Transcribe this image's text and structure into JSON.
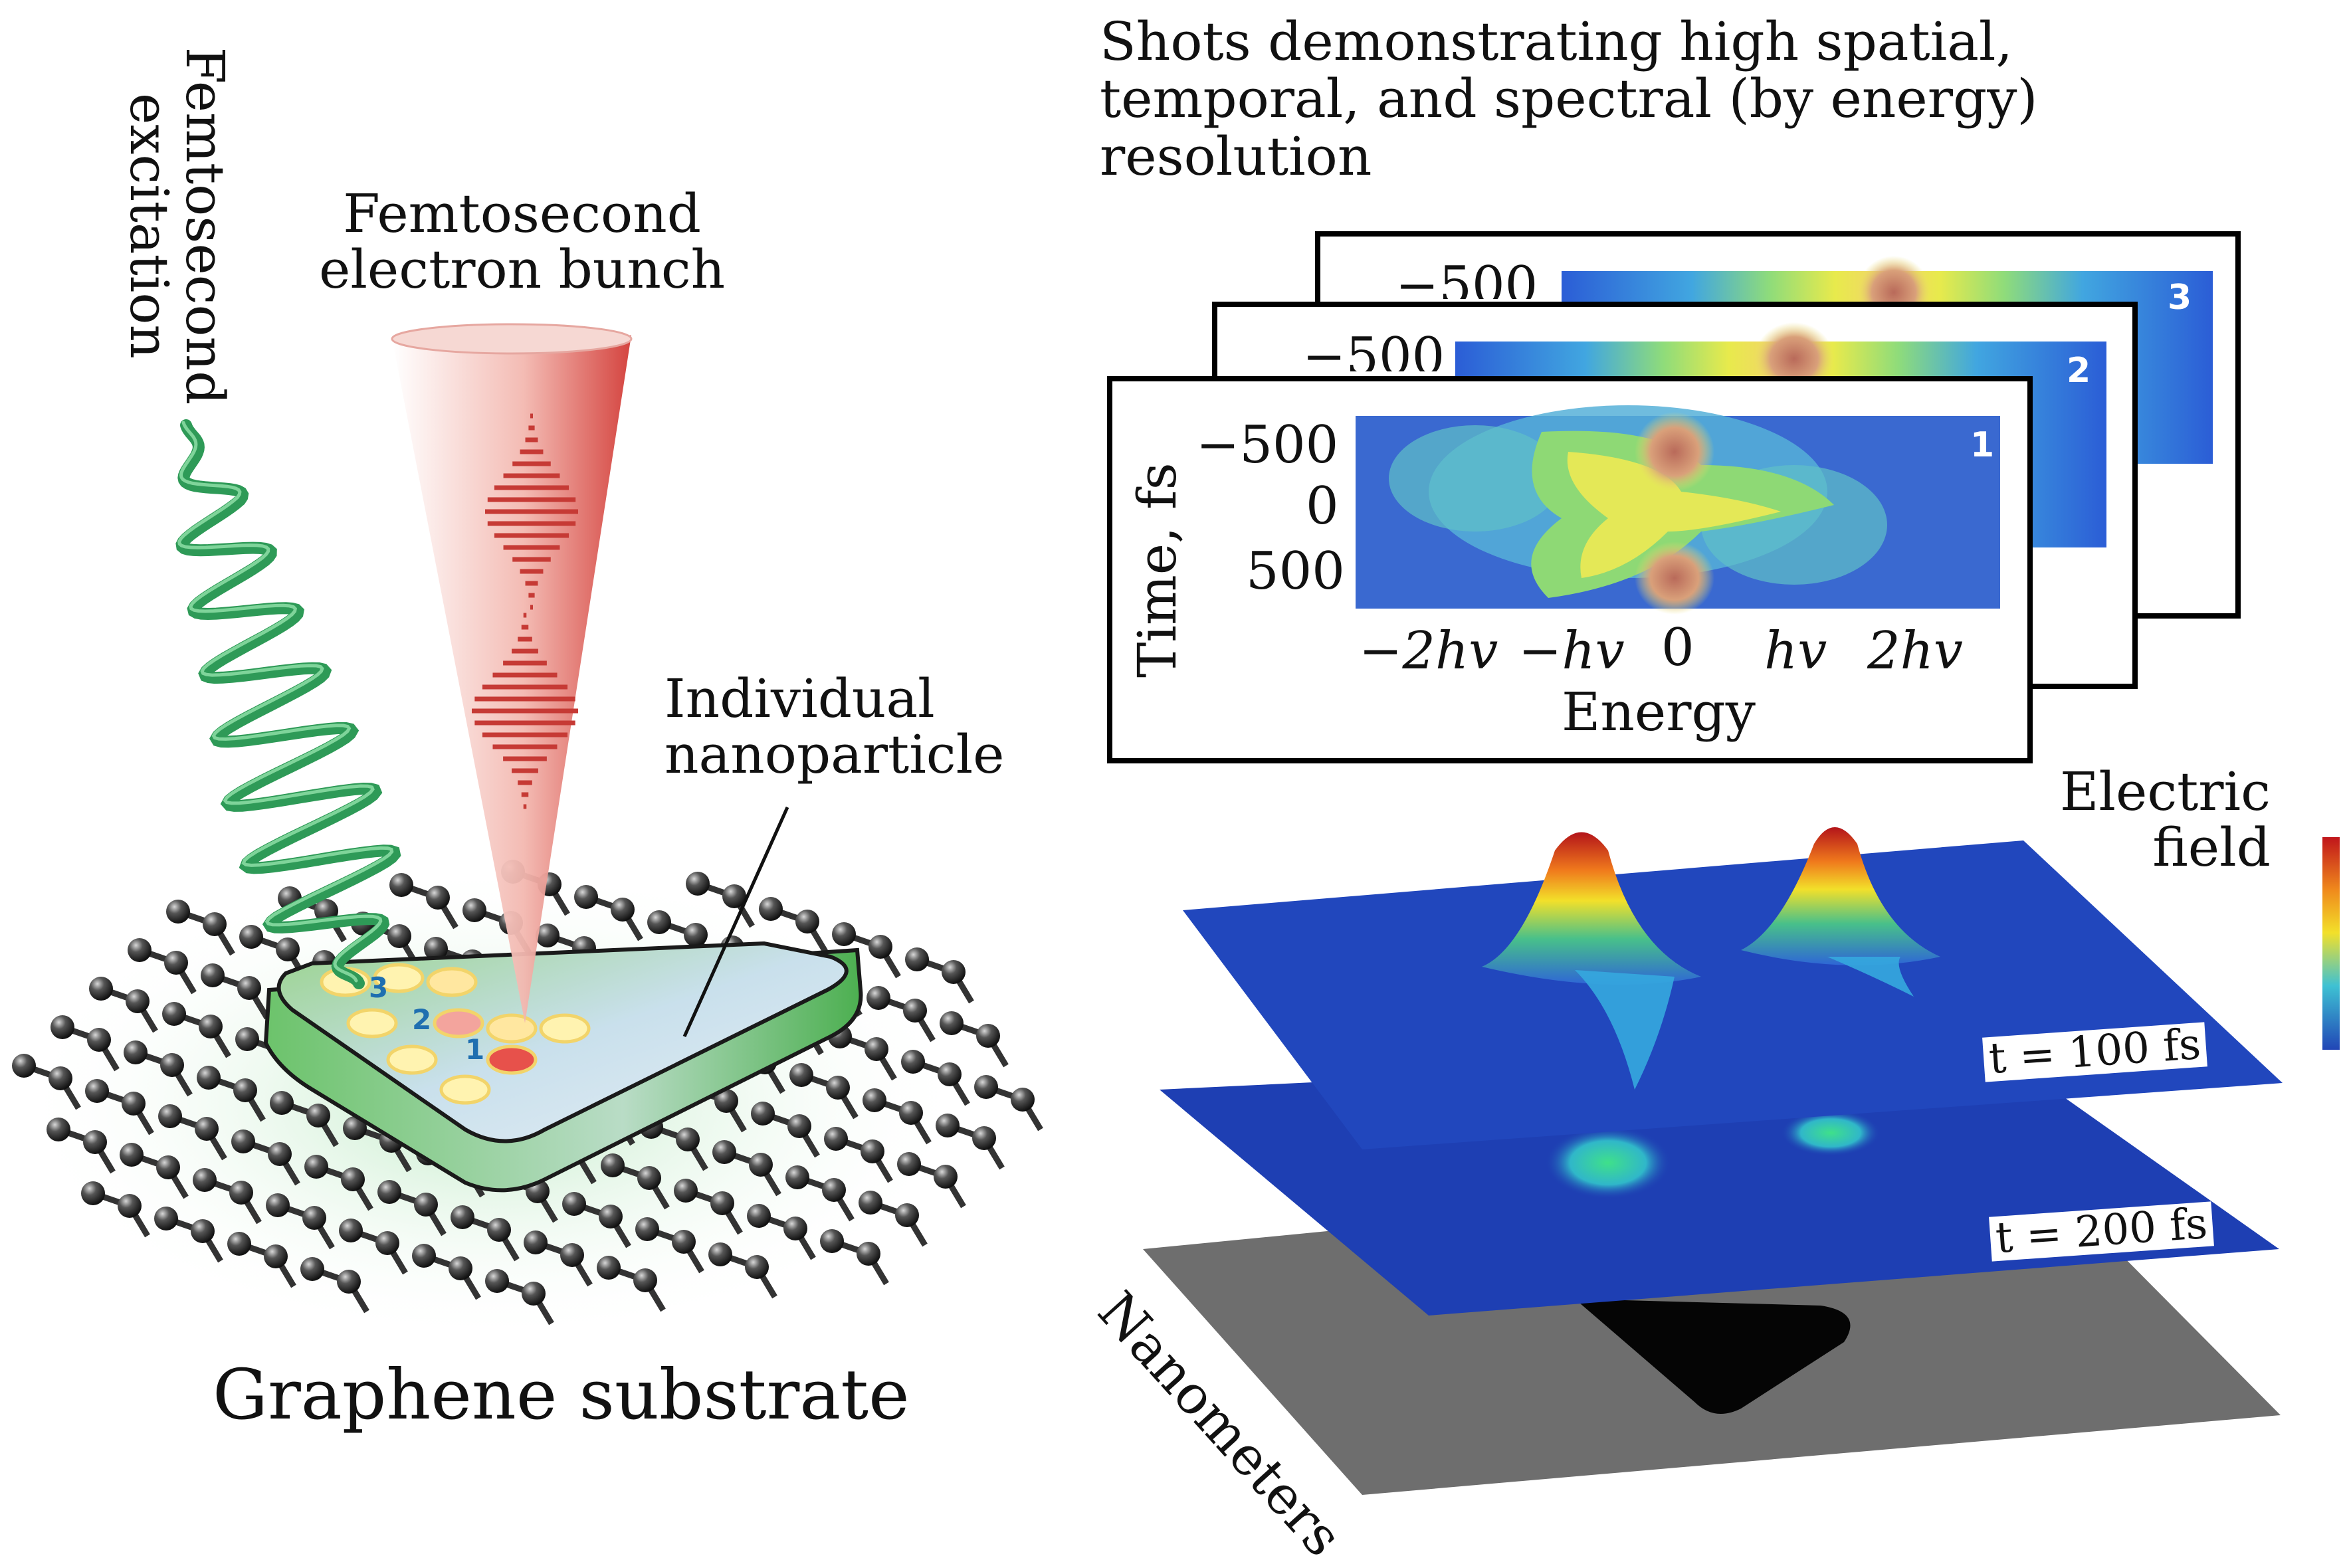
{
  "left_panel": {
    "excitation_label": [
      "Femtosecond",
      "excitation"
    ],
    "bunch_label": [
      "Femtosecond",
      "electron bunch"
    ],
    "nanoparticle_label": [
      "Individual",
      "nanoparticle"
    ],
    "substrate_label": "Graphene substrate",
    "spot_numbers": [
      "1",
      "2",
      "3"
    ]
  },
  "right_panel": {
    "title": [
      "Shots demonstrating high spatial,",
      "temporal, and spectral (by energy)",
      "resolution"
    ],
    "frame_numbers": [
      "1",
      "2",
      "3"
    ],
    "time_ticks": [
      "−500",
      "0",
      "500"
    ],
    "time_axis_label": "Time, fs",
    "energy_ticks": [
      "−2hv",
      "−hv",
      "0",
      "hv",
      "2hv"
    ],
    "energy_axis_label": "Energy",
    "field_label": [
      "Electric",
      "field"
    ],
    "layer_labels": [
      "t = 100 fs",
      "t = 200 fs"
    ],
    "nanometers_label": "Nanometers"
  },
  "colors": {
    "beam_red": "#d23a35",
    "wave_green": "#2e9a57",
    "particle_green": "#5fbf63",
    "field_blue": "#1e3fb3",
    "base_gray": "#6e6e6e"
  }
}
